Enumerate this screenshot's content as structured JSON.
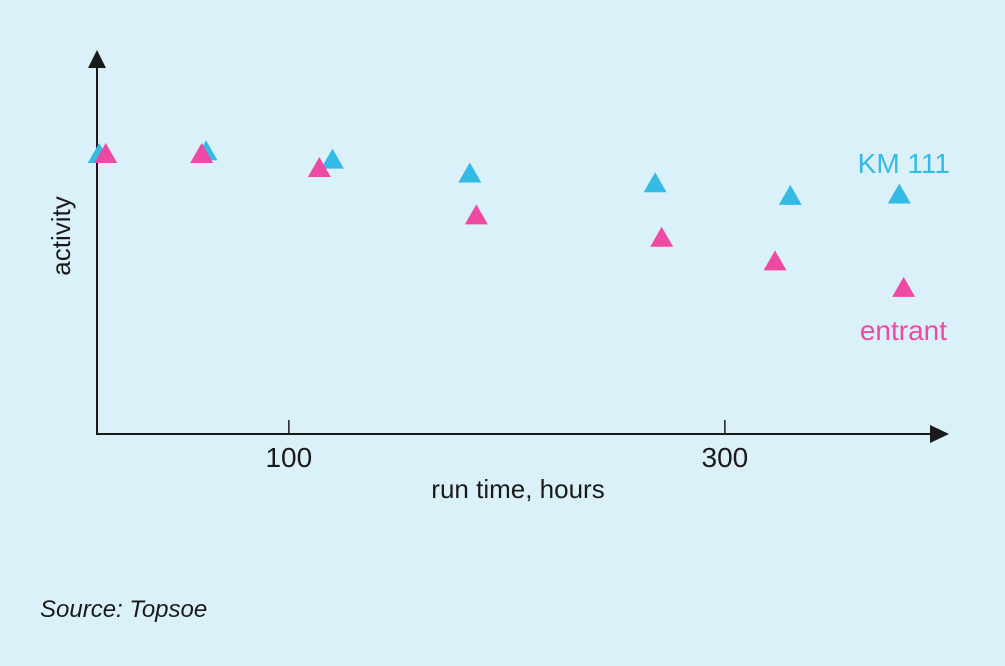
{
  "chart_data": {
    "type": "scatter",
    "title": "",
    "xlabel": "run time, hours",
    "ylabel": "activity",
    "xlim": [
      12,
      395
    ],
    "ylim": [
      0,
      100
    ],
    "x_ticks": [
      100,
      300
    ],
    "grid": false,
    "series": [
      {
        "name": "KM 111",
        "color": "#33bbe6",
        "marker": "triangle",
        "x": [
          13,
          62,
          120,
          183,
          268,
          330,
          380
        ],
        "y": [
          100,
          101,
          98,
          93,
          89.5,
          85,
          85.5
        ]
      },
      {
        "name": "entrant",
        "color": "#ee4aa3",
        "marker": "triangle",
        "x": [
          16,
          60,
          114,
          186,
          271,
          323,
          382
        ],
        "y": [
          100,
          100,
          95,
          78,
          70,
          61.5,
          52
        ]
      }
    ]
  },
  "source": "Source: Topsoe"
}
